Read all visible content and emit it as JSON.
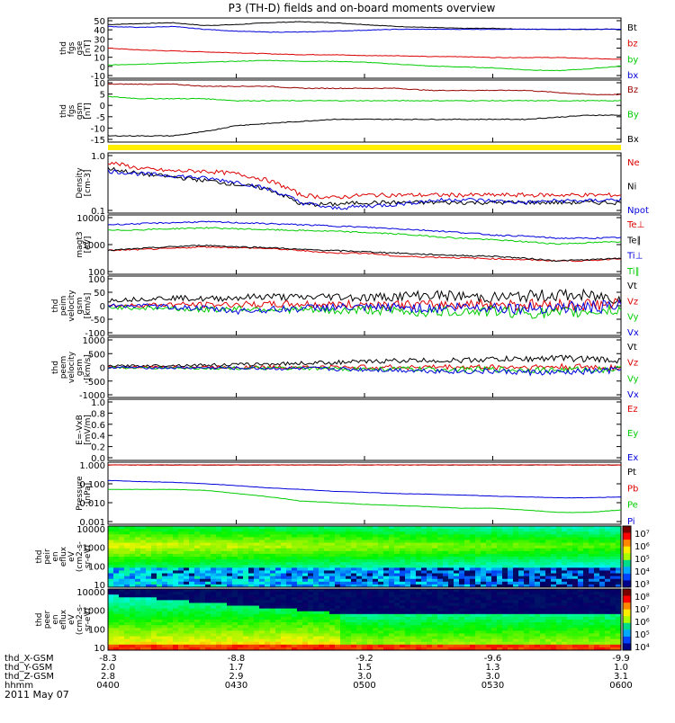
{
  "title": "P3 (TH-D) fields and on-board moments overview",
  "date": "2011 May 07",
  "colors": {
    "black": "#000000",
    "red": "#dd0000",
    "green": "#00cc00",
    "blue": "#0000dd",
    "yellow": "#ffee00",
    "darkred": "#990000"
  },
  "chart_data": [
    {
      "type": "line",
      "id": "fgs_gse",
      "ylabel": [
        "thd",
        "fgs",
        "gse",
        "[nT]"
      ],
      "yticks": [
        "50",
        "40",
        "30",
        "20",
        "10",
        "0",
        "-10"
      ],
      "ylim": [
        -12,
        52
      ],
      "legend": [
        {
          "label": "Bt",
          "color": "black"
        },
        {
          "label": "bz",
          "color": "red"
        },
        {
          "label": "by",
          "color": "green"
        },
        {
          "label": "bx",
          "color": "blue"
        }
      ],
      "series": [
        {
          "name": "Bt",
          "values": [
            45,
            46,
            47,
            44,
            45,
            47,
            48,
            47,
            45,
            43,
            42,
            41,
            41,
            40,
            40,
            40,
            40
          ]
        },
        {
          "name": "bz",
          "values": [
            20,
            18,
            17,
            16,
            15,
            14,
            13,
            13,
            12,
            12,
            11,
            11,
            10,
            10,
            10,
            9,
            8
          ]
        },
        {
          "name": "by",
          "values": [
            2,
            3,
            4,
            5,
            6,
            7,
            6,
            6,
            5,
            3,
            1,
            0,
            -1,
            -3,
            -4,
            -2,
            1
          ]
        },
        {
          "name": "bx",
          "values": [
            43,
            42,
            43,
            40,
            38,
            37,
            37,
            38,
            39,
            40,
            40,
            40,
            40,
            40,
            40,
            40,
            40
          ]
        }
      ]
    },
    {
      "type": "line",
      "id": "fgs_gsm",
      "ylabel": [
        "thd",
        "fgs",
        "gsm",
        "[nT]"
      ],
      "yticks": [
        "10",
        "5",
        "0",
        "-5",
        "-10",
        "-15"
      ],
      "ylim": [
        -18,
        12
      ],
      "legend": [
        {
          "label": "Bz",
          "color": "darkred"
        },
        {
          "label": "By",
          "color": "green"
        },
        {
          "label": "Bx",
          "color": "black"
        }
      ],
      "series": [
        {
          "name": "Bz",
          "values": [
            10,
            10,
            10,
            9,
            9,
            9,
            8,
            8,
            8,
            8,
            7,
            7,
            7,
            7,
            6,
            5,
            5
          ]
        },
        {
          "name": "By",
          "values": [
            4,
            3,
            3,
            3,
            2,
            2,
            2,
            2,
            2,
            2,
            2,
            2,
            2,
            2,
            2,
            2,
            2
          ]
        },
        {
          "name": "Bx",
          "values": [
            -15,
            -15,
            -15,
            -13,
            -10,
            -9,
            -8,
            -7,
            -7,
            -7,
            -7,
            -7,
            -7,
            -7,
            -6,
            -5,
            -5
          ]
        }
      ]
    },
    {
      "type": "line",
      "id": "density",
      "ylabel": [
        "Density",
        "[cm-3]"
      ],
      "yticks": [
        "1.0",
        "0.1"
      ],
      "ylim": [
        0.1,
        1.0
      ],
      "legend": [
        {
          "label": "Ne",
          "color": "red"
        },
        {
          "label": "Ni",
          "color": "black"
        },
        {
          "label": "Npot",
          "color": "blue"
        }
      ],
      "series": [
        {
          "name": "Ne",
          "values": [
            0.7,
            0.55,
            0.5,
            0.5,
            0.45,
            0.35,
            0.2,
            0.18,
            0.2,
            0.2,
            0.2,
            0.2,
            0.2,
            0.2,
            0.2,
            0.2,
            0.2
          ]
        },
        {
          "name": "Ni",
          "values": [
            0.55,
            0.45,
            0.4,
            0.35,
            0.3,
            0.25,
            0.14,
            0.14,
            0.15,
            0.15,
            0.15,
            0.15,
            0.15,
            0.15,
            0.15,
            0.15,
            0.15
          ]
        },
        {
          "name": "Npot",
          "values": [
            0.5,
            0.45,
            0.42,
            0.38,
            0.33,
            0.25,
            0.15,
            0.12,
            0.13,
            0.14,
            0.16,
            0.17,
            0.16,
            0.15,
            0.16,
            0.16,
            0.17
          ]
        }
      ]
    },
    {
      "type": "line",
      "id": "temperature",
      "ylabel": [
        "magt3",
        "[eV]"
      ],
      "yticks": [
        "10000",
        "1000",
        "100"
      ],
      "ylim": [
        60,
        12000
      ],
      "legend": [
        {
          "label": "Te⊥",
          "color": "red"
        },
        {
          "label": "Te∥",
          "color": "black"
        },
        {
          "label": "Ti⊥",
          "color": "blue"
        },
        {
          "label": "Ti∥",
          "color": "green"
        }
      ],
      "series": [
        {
          "name": "Te⊥",
          "values": [
            500,
            550,
            600,
            700,
            650,
            600,
            500,
            400,
            400,
            300,
            280,
            260,
            240,
            220,
            200,
            200,
            250
          ]
        },
        {
          "name": "Te∥",
          "values": [
            500,
            600,
            700,
            800,
            700,
            650,
            550,
            500,
            450,
            400,
            350,
            320,
            300,
            250,
            200,
            220,
            250
          ]
        },
        {
          "name": "Ti⊥",
          "values": [
            5000,
            5500,
            6000,
            6500,
            6000,
            5500,
            5000,
            4500,
            4000,
            3500,
            3000,
            2500,
            2000,
            1800,
            1500,
            1500,
            1600
          ]
        },
        {
          "name": "Ti∥",
          "values": [
            3000,
            3200,
            3500,
            3800,
            3500,
            3200,
            3000,
            2800,
            2500,
            2200,
            1800,
            1500,
            1300,
            1100,
            900,
            1000,
            1100
          ]
        }
      ]
    },
    {
      "type": "line",
      "id": "peim_velocity",
      "ylabel": [
        "thd",
        "peim",
        "velocity",
        "gsm",
        "[km/s]"
      ],
      "yticks": [
        "100",
        "50",
        "0",
        "-50",
        "-100"
      ],
      "ylim": [
        -110,
        110
      ],
      "legend": [
        {
          "label": "Vt",
          "color": "black"
        },
        {
          "label": "Vz",
          "color": "red"
        },
        {
          "label": "Vy",
          "color": "green"
        },
        {
          "label": "Vx",
          "color": "blue"
        }
      ],
      "series": [
        {
          "name": "Vt",
          "values": [
            20,
            25,
            30,
            25,
            30,
            35,
            30,
            35,
            30,
            35,
            40,
            35,
            30,
            35,
            40,
            35,
            30
          ]
        },
        {
          "name": "Vz",
          "values": [
            0,
            2,
            5,
            3,
            5,
            4,
            6,
            3,
            5,
            4,
            3,
            5,
            6,
            4,
            3,
            5,
            4
          ]
        },
        {
          "name": "Vy",
          "values": [
            -5,
            -8,
            -10,
            -15,
            -10,
            -12,
            -15,
            -20,
            -15,
            -20,
            -25,
            -20,
            -20,
            -25,
            -30,
            -20,
            -15
          ]
        },
        {
          "name": "Vx",
          "values": [
            0,
            0,
            -5,
            -10,
            -20,
            -15,
            -10,
            -5,
            -10,
            -5,
            -10,
            -5,
            -5,
            -10,
            -5,
            -5,
            -5
          ]
        }
      ]
    },
    {
      "type": "line",
      "id": "peem_velocity",
      "ylabel": [
        "thd",
        "peem",
        "velocity",
        "gsm",
        "[km/s]"
      ],
      "yticks": [
        "1000",
        "500",
        "0",
        "-500",
        "-1000"
      ],
      "ylim": [
        -1100,
        1100
      ],
      "legend": [
        {
          "label": "Vt",
          "color": "black"
        },
        {
          "label": "Vz",
          "color": "red"
        },
        {
          "label": "Vy",
          "color": "green"
        },
        {
          "label": "Vx",
          "color": "blue"
        }
      ],
      "series": [
        {
          "name": "Vt",
          "values": [
            50,
            60,
            70,
            80,
            100,
            120,
            150,
            180,
            200,
            250,
            250,
            250,
            300,
            300,
            350,
            300,
            250
          ]
        },
        {
          "name": "Vz",
          "values": [
            0,
            5,
            10,
            5,
            10,
            5,
            10,
            5,
            10,
            5,
            10,
            5,
            10,
            5,
            10,
            5,
            5
          ]
        },
        {
          "name": "Vy",
          "values": [
            -10,
            -20,
            -20,
            -30,
            -30,
            -40,
            -40,
            -50,
            -60,
            -60,
            -70,
            -80,
            -80,
            -90,
            -100,
            -80,
            -60
          ]
        },
        {
          "name": "Vx",
          "values": [
            0,
            -10,
            -20,
            -20,
            -30,
            -40,
            -50,
            -60,
            -80,
            -100,
            -120,
            -150,
            -150,
            -180,
            -200,
            -150,
            -100
          ]
        }
      ]
    },
    {
      "type": "line",
      "id": "efield",
      "ylabel": [
        "E=-VxB",
        "[mV/m]"
      ],
      "yticks": [
        "1.0",
        "0.8",
        "0.6",
        "0.4",
        "0.2",
        "0.0"
      ],
      "ylim": [
        0,
        1
      ],
      "legend": [
        {
          "label": "Ez",
          "color": "red"
        },
        {
          "label": "Ey",
          "color": "green"
        },
        {
          "label": "Ex",
          "color": "blue"
        }
      ],
      "series": []
    },
    {
      "type": "line",
      "id": "pressure",
      "ylabel": [
        "Pressure",
        "[nPa]"
      ],
      "yticks": [
        "1.000",
        "0.100",
        "0.010",
        "0.001"
      ],
      "ylim": [
        0.0007,
        1.4
      ],
      "legend": [
        {
          "label": "Pt",
          "color": "black"
        },
        {
          "label": "Pb",
          "color": "red"
        },
        {
          "label": "Pe",
          "color": "green"
        },
        {
          "label": "Pi",
          "color": "blue"
        }
      ],
      "series": [
        {
          "name": "Pt",
          "values": [
            1,
            1,
            1,
            1,
            1,
            1,
            1,
            1,
            1,
            1,
            1,
            1,
            1,
            1,
            1,
            1,
            1
          ]
        },
        {
          "name": "Pb",
          "values": [
            1,
            1,
            1,
            1,
            1,
            1,
            1,
            1,
            1,
            1,
            1,
            1,
            1,
            1,
            1,
            1,
            1
          ]
        },
        {
          "name": "Pe",
          "values": [
            0.05,
            0.05,
            0.05,
            0.045,
            0.03,
            0.02,
            0.012,
            0.01,
            0.008,
            0.007,
            0.006,
            0.005,
            0.005,
            0.004,
            0.003,
            0.003,
            0.004
          ]
        },
        {
          "name": "Pi",
          "values": [
            0.15,
            0.13,
            0.12,
            0.1,
            0.08,
            0.06,
            0.05,
            0.04,
            0.035,
            0.03,
            0.028,
            0.025,
            0.022,
            0.02,
            0.018,
            0.018,
            0.02
          ]
        }
      ]
    },
    {
      "type": "heatmap",
      "id": "peir_eflux",
      "ylabel": [
        "thd",
        "peir",
        "en",
        "eflux",
        "eV",
        "(cm2-s-",
        "sr-eV)"
      ],
      "yticks": [
        "10000",
        "1000",
        "100",
        "10"
      ],
      "colorbar": [
        "10⁷",
        "10⁶",
        "10⁵",
        "10⁴",
        "10³"
      ]
    },
    {
      "type": "heatmap",
      "id": "peer_eflux",
      "ylabel": [
        "thd",
        "peer",
        "en",
        "eflux",
        "eV",
        "(cm2-s-",
        "sr-eV)"
      ],
      "yticks": [
        "10000",
        "1000",
        "100",
        "10"
      ],
      "colorbar": [
        "10⁸",
        "10⁷",
        "10⁶",
        "10⁵",
        "10⁴"
      ]
    }
  ],
  "xaxis": {
    "rows": [
      {
        "label": "thd_X-GSM",
        "values": [
          "-8.3",
          "-8.8",
          "-9.2",
          "-9.6",
          "-9.9"
        ]
      },
      {
        "label": "thd_Y-GSM",
        "values": [
          "2.0",
          "1.7",
          "1.5",
          "1.3",
          "1.0"
        ]
      },
      {
        "label": "thd_Z-GSM",
        "values": [
          "2.8",
          "2.9",
          "3.0",
          "3.0",
          "3.1"
        ]
      },
      {
        "label": "hhmm",
        "values": [
          "0400",
          "0430",
          "0500",
          "0530",
          "0600"
        ]
      }
    ]
  }
}
